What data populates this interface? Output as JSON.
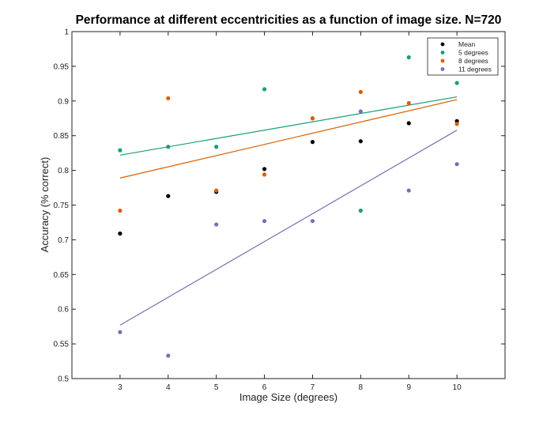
{
  "chart_data": {
    "type": "scatter",
    "title": "Performance at different eccentricities as a function of image size. N=720",
    "xlabel": "Image Size (degrees)",
    "ylabel": "Accuracy (% correct)",
    "xlim": [
      2,
      11
    ],
    "ylim": [
      0.5,
      1
    ],
    "xticks": [
      3,
      4,
      5,
      6,
      7,
      8,
      9,
      10
    ],
    "xtick_labels": [
      "3",
      "4",
      "5",
      "6",
      "7",
      "8",
      "9",
      "10"
    ],
    "yticks": [
      0.5,
      0.55,
      0.6,
      0.65,
      0.7,
      0.75,
      0.8,
      0.85,
      0.9,
      0.95,
      1
    ],
    "ytick_labels": [
      "0.5",
      "0.55",
      "0.6",
      "0.65",
      "0.7",
      "0.75",
      "0.8",
      "0.85",
      "0.9",
      "0.95",
      "1"
    ],
    "grid": false,
    "legend_position": "top-right",
    "x": [
      3,
      4,
      5,
      6,
      7,
      8,
      9,
      10
    ],
    "series": [
      {
        "name": "Mean",
        "color": "#000000",
        "values": [
          0.709,
          0.763,
          0.769,
          0.802,
          0.841,
          0.842,
          0.868,
          0.871
        ]
      },
      {
        "name": "5 degrees",
        "color": "#1b9e77",
        "values": [
          0.829,
          0.834,
          0.834,
          0.917,
          0.875,
          0.742,
          0.963,
          0.926
        ],
        "trend": [
          0.822,
          0.906
        ]
      },
      {
        "name": "8 degrees",
        "color": "#d95f02",
        "values": [
          0.742,
          0.904,
          0.771,
          0.794,
          0.875,
          0.913,
          0.897,
          0.867
        ],
        "trend": [
          0.789,
          0.902
        ]
      },
      {
        "name": "11 degrees",
        "color": "#7570b3",
        "values": [
          0.567,
          0.533,
          0.722,
          0.727,
          0.727,
          0.885,
          0.771,
          0.809
        ],
        "trend": [
          0.577,
          0.858
        ]
      }
    ]
  }
}
